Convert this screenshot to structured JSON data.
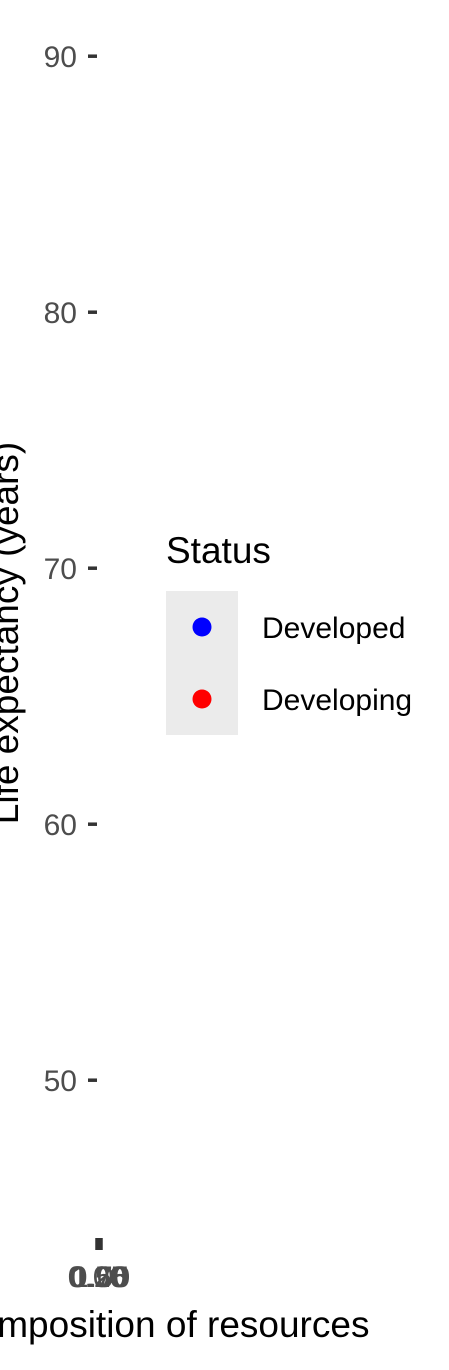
{
  "chart_data": {
    "type": "scatter",
    "title": "",
    "xlabel": "Income composition of resources",
    "ylabel": "Life expectancy (years)",
    "ylim": [
      42,
      92
    ],
    "y_ticks": [
      50,
      60,
      70,
      80,
      90
    ],
    "x_ticks": [
      0.0,
      0.25,
      0.5,
      0.75,
      1.0
    ],
    "x_tick_labels": [
      "0.00",
      "0.25",
      "0.50",
      "0.75",
      "1.00"
    ],
    "grid": false,
    "legend": {
      "title": "Status",
      "placement": "right",
      "entries": [
        {
          "label": "Developed",
          "color": "#0000ff"
        },
        {
          "label": "Developing",
          "color": "#ff0000"
        }
      ]
    },
    "series": [
      {
        "name": "Developed",
        "color": "#0000ff",
        "points": []
      },
      {
        "name": "Developing",
        "color": "#ff0000",
        "points": []
      }
    ]
  }
}
